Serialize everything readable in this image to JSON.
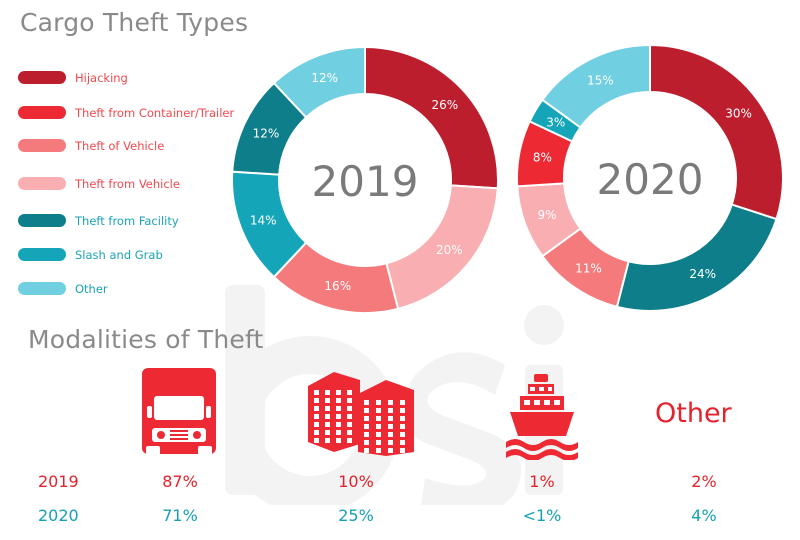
{
  "title": "Cargo Theft Types",
  "subtitle": "Modalities of Theft",
  "legend": [
    {
      "label": "Hijacking",
      "color": "#bd1e2e"
    },
    {
      "label": "Theft from Container/Trailer",
      "color": "#ed2a33"
    },
    {
      "label": "Theft of Vehicle",
      "color": "#f47a7c"
    },
    {
      "label": "Theft from Vehicle",
      "color": "#f9aeb1"
    },
    {
      "label": "Theft from Facility",
      "color": "#0e7f8a"
    },
    {
      "label": "Slash and Grab",
      "color": "#14a6b8"
    },
    {
      "label": "Other",
      "color": "#70cfe0"
    }
  ],
  "chart_data": [
    {
      "type": "pie",
      "center_label": "2019",
      "slices": [
        {
          "category": "Hijacking",
          "value": 26,
          "label": "26%"
        },
        {
          "category": "Theft from Vehicle",
          "value": 20,
          "label": "20%"
        },
        {
          "category": "Theft of Vehicle",
          "value": 16,
          "label": "16%"
        },
        {
          "category": "Slash and Grab",
          "value": 14,
          "label": "14%"
        },
        {
          "category": "Theft from Facility",
          "value": 12,
          "label": "12%"
        },
        {
          "category": "Other",
          "value": 12,
          "label": "12%"
        }
      ]
    },
    {
      "type": "pie",
      "center_label": "2020",
      "slices": [
        {
          "category": "Hijacking",
          "value": 30,
          "label": "30%"
        },
        {
          "category": "Theft from Facility",
          "value": 24,
          "label": "24%"
        },
        {
          "category": "Theft of Vehicle",
          "value": 11,
          "label": "11%"
        },
        {
          "category": "Theft from Vehicle",
          "value": 9,
          "label": "9%"
        },
        {
          "category": "Theft from Container/Trailer",
          "value": 8,
          "label": "8%"
        },
        {
          "category": "Slash and Grab",
          "value": 3,
          "label": "3%"
        },
        {
          "category": "Other",
          "value": 15,
          "label": "15%"
        }
      ]
    },
    {
      "type": "table",
      "columns": [
        "truck-icon",
        "building-icon",
        "ship-icon",
        "Other"
      ],
      "rows": [
        {
          "year": "2019",
          "values": [
            "87%",
            "10%",
            "1%",
            "2%"
          ]
        },
        {
          "year": "2020",
          "values": [
            "71%",
            "25%",
            "<1%",
            "4%"
          ]
        }
      ]
    }
  ],
  "modalities": {
    "icons": [
      "truck-icon",
      "building-icon",
      "ship-icon"
    ],
    "other_label": "Other",
    "row_2019": {
      "year": "2019",
      "truck": "87%",
      "building": "10%",
      "ship": "1%",
      "other": "2%"
    },
    "row_2020": {
      "year": "2020",
      "truck": "71%",
      "building": "25%",
      "ship": "<1%",
      "other": "4%"
    },
    "colors": {
      "2019": "#e4222b",
      "2020": "#15a1b1"
    }
  },
  "watermark": "bsi"
}
